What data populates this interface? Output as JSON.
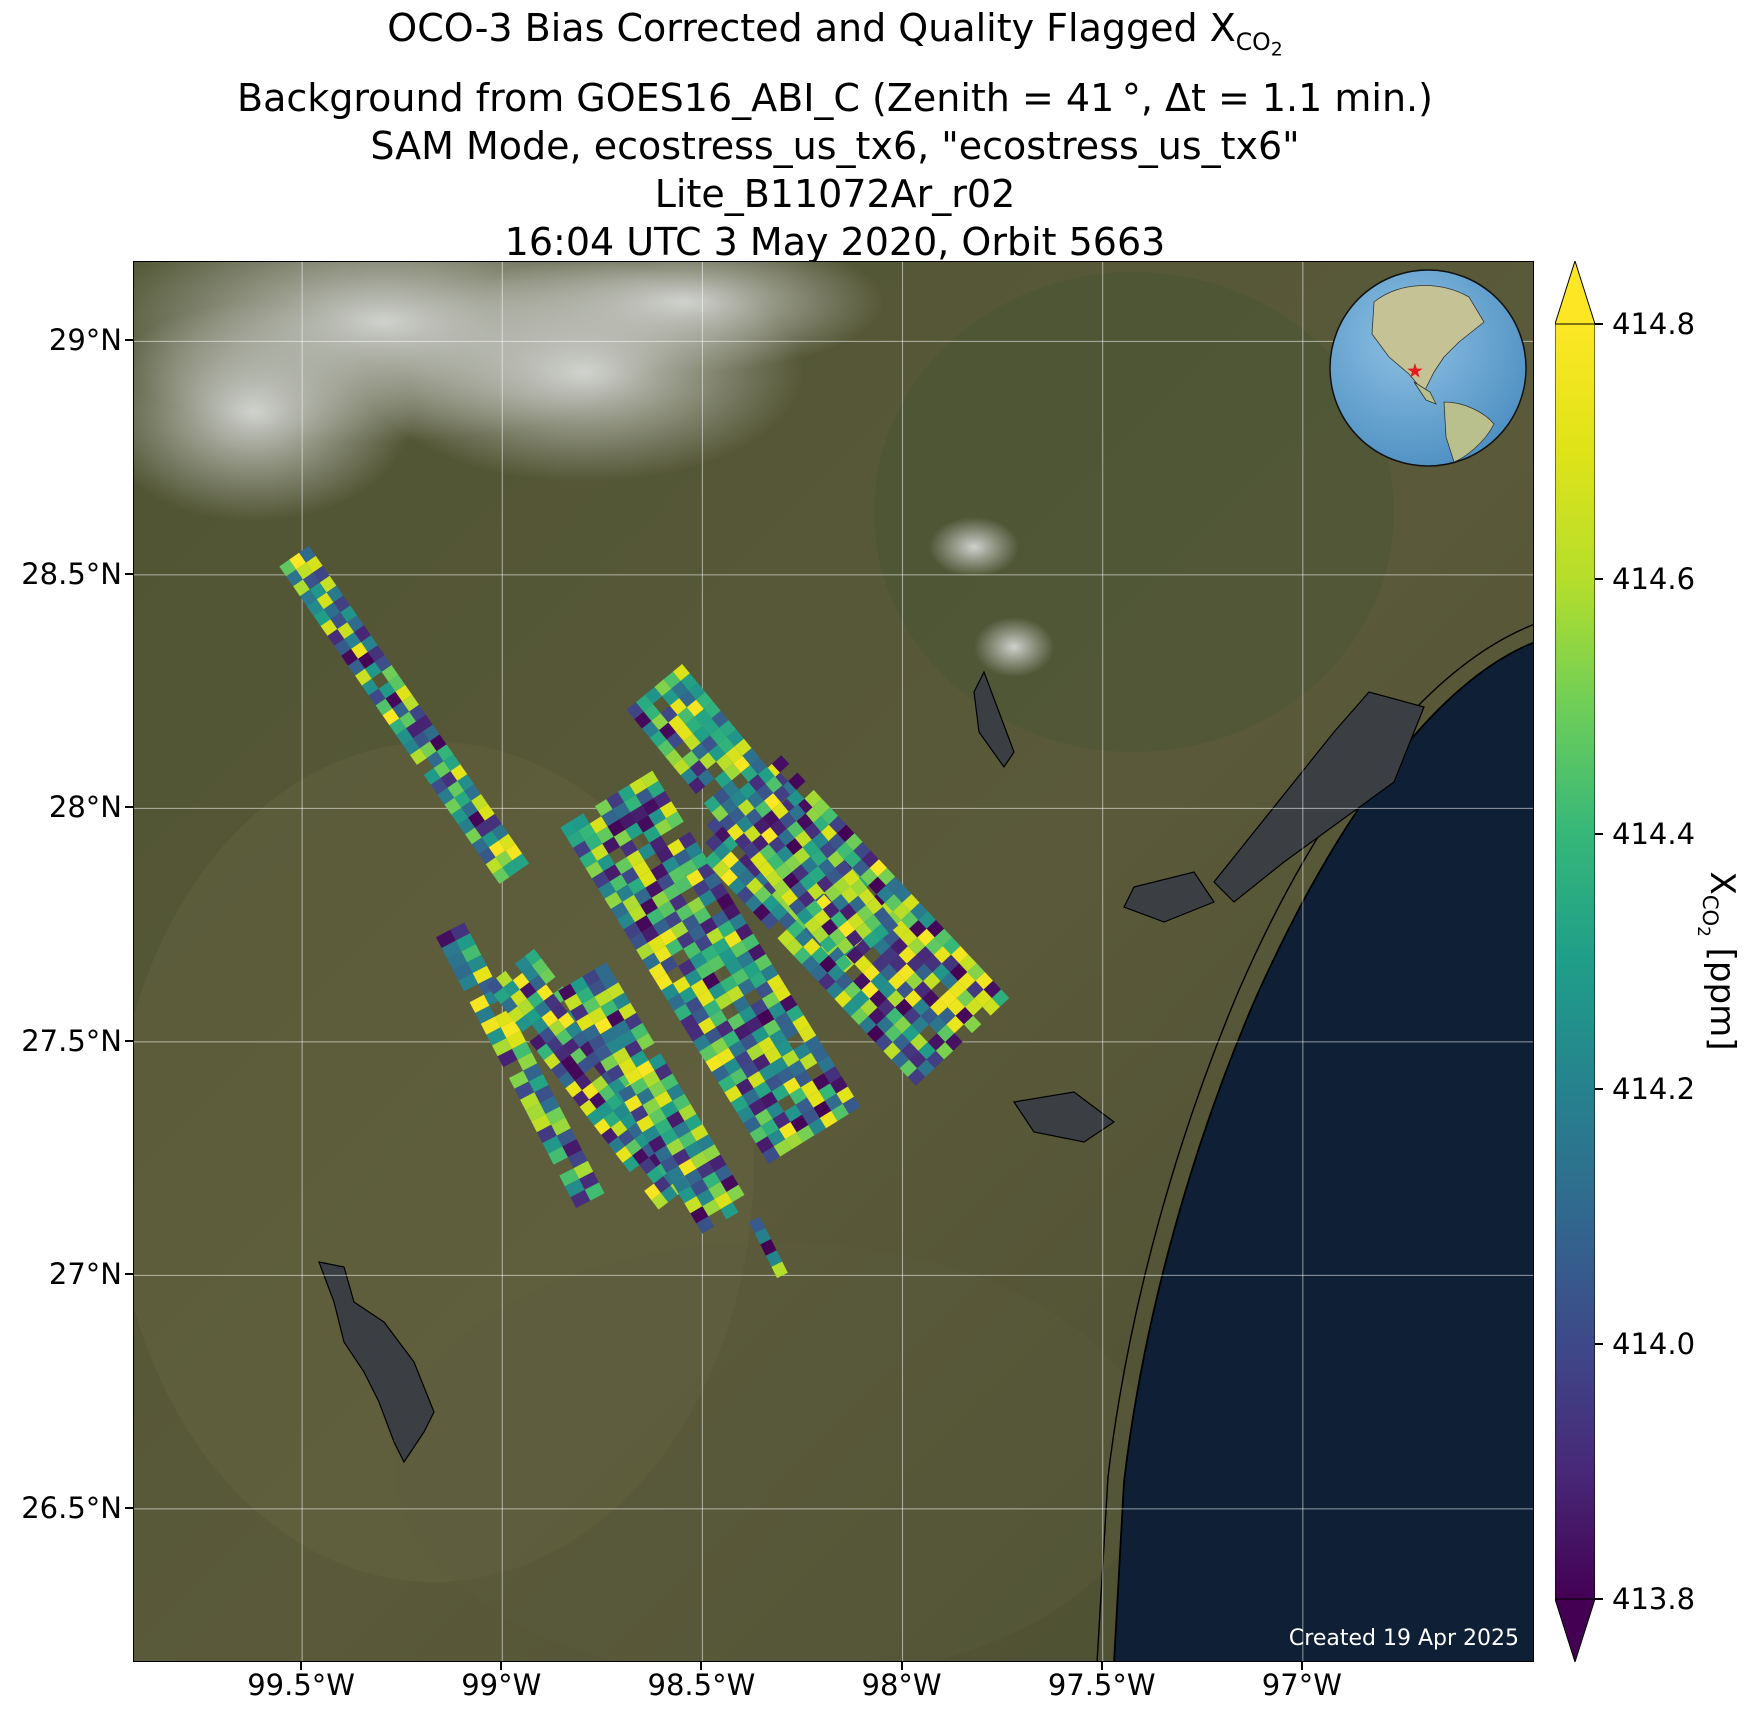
{
  "title": {
    "line1_main": "OCO-3 Bias Corrected and Quality Flagged X",
    "line1_sub_prefix": "CO",
    "line1_sub_sub": "2",
    "line2": "Background from GOES16_ABI_C (Zenith = 41 °, Δt =  1.1 min.)",
    "line3": "SAM Mode, ecostress_us_tx6, \"ecostress_us_tx6\"",
    "line4": "Lite_B11072Ar_r02",
    "line5": "16:04 UTC 3 May 2020, Orbit 5663"
  },
  "map": {
    "lon_range": [
      -99.92,
      -96.42
    ],
    "lat_range": [
      26.17,
      29.17
    ],
    "lon_ticks": [
      -99.5,
      -99.0,
      -98.5,
      -98.0,
      -97.5,
      -97.0
    ],
    "lat_ticks": [
      26.5,
      27.0,
      27.5,
      28.0,
      28.5,
      29.0
    ],
    "lon_tick_labels": [
      "99.5°W",
      "99°W",
      "98.5°W",
      "98°W",
      "97.5°W",
      "97°W"
    ],
    "lat_tick_labels": [
      "26.5°N",
      "27°N",
      "27.5°N",
      "28°N",
      "28.5°N",
      "29°N"
    ],
    "gridlines": true,
    "background": "satellite imagery with land, coastline and clouds",
    "created_note": "Created 19 Apr 2025",
    "inset_globe": {
      "position": "top-right",
      "marker_color": "#e41a1c",
      "marker_symbol": "star"
    }
  },
  "colorbar": {
    "min": 413.8,
    "max": 414.8,
    "ticks": [
      413.8,
      414.0,
      414.2,
      414.4,
      414.6,
      414.8
    ],
    "tick_labels": [
      "413.8",
      "414.0",
      "414.2",
      "414.4",
      "414.6",
      "414.8"
    ],
    "label_main": "X",
    "label_sub_prefix": "CO",
    "label_sub_sub": "2",
    "label_unit": " [ppm]",
    "colormap": "viridis",
    "extend": "both"
  },
  "chart_data": {
    "type": "heatmap",
    "value_range": [
      413.8,
      414.8
    ],
    "swaths": [
      {
        "start": [
          -99.52,
          28.54
        ],
        "end": [
          -98.97,
          27.86
        ],
        "width_deg": 0.09
      },
      {
        "start": [
          -99.13,
          27.74
        ],
        "end": [
          -98.78,
          27.16
        ],
        "width_deg": 0.08
      },
      {
        "start": [
          -98.98,
          27.66
        ],
        "end": [
          -98.55,
          27.18
        ],
        "width_deg": 0.15
      },
      {
        "start": [
          -98.8,
          27.64
        ],
        "end": [
          -98.44,
          27.12
        ],
        "width_deg": 0.14
      },
      {
        "start": [
          -98.74,
          28.02
        ],
        "end": [
          -98.22,
          27.3
        ],
        "width_deg": 0.27
      },
      {
        "start": [
          -98.42,
          28.02
        ],
        "end": [
          -97.85,
          27.5
        ],
        "width_deg": 0.32
      },
      {
        "start": [
          -98.62,
          28.26
        ],
        "end": [
          -98.08,
          27.7
        ],
        "width_deg": 0.18
      },
      {
        "start": [
          -98.37,
          27.12
        ],
        "end": [
          -98.3,
          27.0
        ],
        "width_deg": 0.03
      }
    ]
  }
}
